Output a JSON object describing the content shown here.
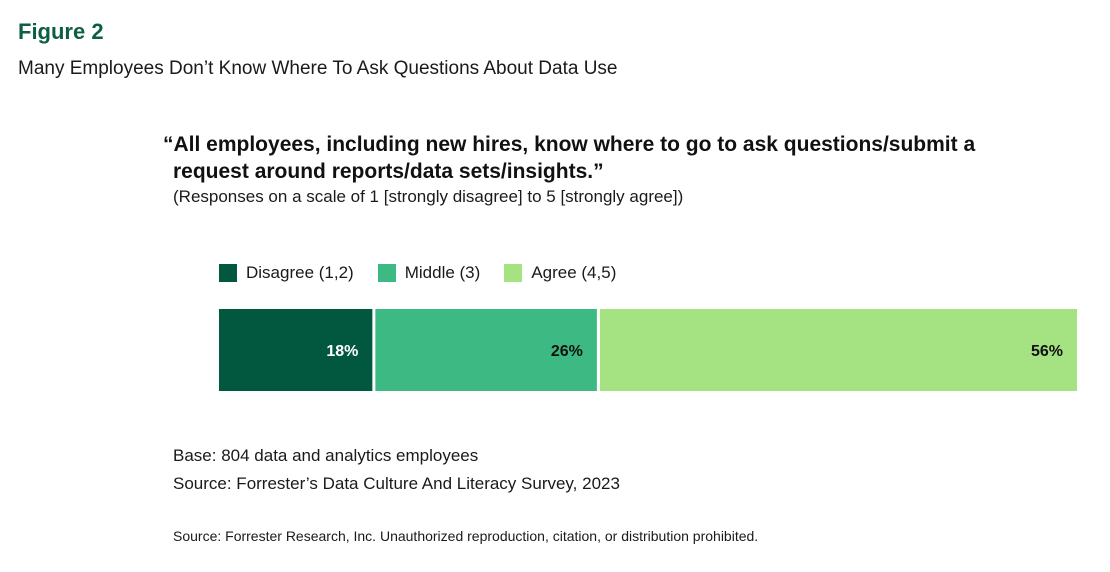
{
  "figure": {
    "label": "Figure 2",
    "title": "Many Employees Don’t Know Where To Ask Questions About Data Use"
  },
  "question": {
    "line1": "“All employees, including new hires, know where to go to ask questions/submit a",
    "line2": "request around reports/data sets/insights.”",
    "scale_note": "(Responses on a scale of 1 [strongly disagree] to 5 [strongly agree])"
  },
  "chart_data": {
    "type": "bar",
    "orientation": "horizontal-stacked",
    "categories": [
      ""
    ],
    "series": [
      {
        "name": "Disagree (1,2)",
        "values": [
          18
        ],
        "label": "18%",
        "color": "#02573f",
        "label_color": "#ffffff"
      },
      {
        "name": "Middle (3)",
        "values": [
          26
        ],
        "label": "26%",
        "color": "#3dba83",
        "label_color": "#111111"
      },
      {
        "name": "Agree (4,5)",
        "values": [
          56
        ],
        "label": "56%",
        "color": "#a5e382",
        "label_color": "#111111"
      }
    ],
    "xlim": [
      0,
      100
    ],
    "grid": false,
    "legend_position": "top-left"
  },
  "notes": {
    "base": "Base: 804 data and analytics employees",
    "source": "Source: Forrester’s Data Culture And Literacy Survey, 2023",
    "copyright": "Source: Forrester Research, Inc. Unauthorized reproduction, citation, or distribution prohibited."
  }
}
